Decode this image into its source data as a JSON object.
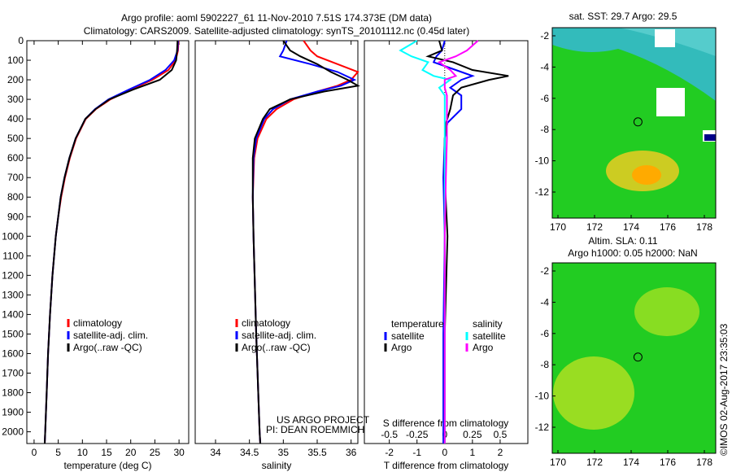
{
  "title_line1": "Argo profile: aoml 5902227_61 11-Nov-2010 7.51S 174.373E (DM data)",
  "title_line2": "Climatology: CARS2009. Satellite-adjusted climatology: synTS_20101112.nc (0.45d later)",
  "colors": {
    "climatology": "#ff0000",
    "satellite": "#0000ff",
    "argo": "#000000",
    "sal_satellite": "#00ffff",
    "sal_argo": "#ff00ff"
  },
  "chart_data": [
    {
      "type": "line",
      "name": "temperature",
      "xlabel": "temperature (deg C)",
      "xlim": [
        -1.5,
        32
      ],
      "ylim": [
        2060,
        0
      ],
      "xticks": [
        0,
        5,
        10,
        15,
        20,
        25,
        30
      ],
      "yticks": [
        0,
        100,
        200,
        300,
        400,
        500,
        600,
        700,
        800,
        900,
        1000,
        1100,
        1200,
        1300,
        1400,
        1500,
        1600,
        1700,
        1800,
        1900,
        2000
      ],
      "legend": [
        "climatology",
        "satellite-adj. clim.",
        "Argo(..raw -QC)"
      ],
      "depth": [
        0,
        50,
        100,
        150,
        200,
        250,
        300,
        350,
        400,
        500,
        600,
        700,
        800,
        900,
        1000,
        1200,
        1400,
        1600,
        1800,
        2000,
        2060
      ],
      "series": [
        {
          "name": "climatology",
          "color": "#ff0000",
          "values": [
            29.9,
            29.8,
            29.3,
            27.8,
            24.5,
            20,
            15.8,
            12.8,
            10.7,
            8.7,
            7.4,
            6.4,
            5.6,
            5.0,
            4.5,
            3.8,
            3.3,
            2.9,
            2.6,
            2.3,
            2.2
          ]
        },
        {
          "name": "satellite-adj. clim.",
          "color": "#0000ff",
          "values": [
            29.8,
            29.7,
            29.0,
            27.2,
            24,
            19.6,
            15.4,
            12.6,
            10.6,
            8.6,
            7.3,
            6.3,
            5.5,
            5.0,
            4.5,
            3.8,
            3.3,
            2.9,
            2.6,
            2.3,
            2.2
          ]
        },
        {
          "name": "Argo(..raw -QC)",
          "color": "#000000",
          "values": [
            29.7,
            29.6,
            29.4,
            28.5,
            26,
            20.5,
            15.6,
            12.7,
            10.6,
            8.6,
            7.3,
            6.3,
            5.5,
            5.0,
            4.5,
            3.8,
            3.3,
            2.9,
            2.6,
            2.3,
            2.2
          ]
        }
      ]
    },
    {
      "type": "line",
      "name": "salinity",
      "xlabel": "salinity",
      "xlim": [
        33.7,
        36.1
      ],
      "ylim": [
        2060,
        0
      ],
      "xticks": [
        34,
        34.5,
        35,
        35.5,
        36
      ],
      "legend": [
        "climatology",
        "satellite-adj. clim.",
        "Argo(..raw -QC)"
      ],
      "annotation": [
        "US ARGO PROJECT",
        "PI: DEAN ROEMMICH"
      ],
      "depth": [
        0,
        50,
        80,
        120,
        160,
        200,
        230,
        260,
        300,
        350,
        400,
        500,
        600,
        800,
        1000,
        1500,
        2000,
        2060
      ],
      "series": [
        {
          "name": "climatology",
          "color": "#ff0000",
          "values": [
            35.3,
            35.4,
            35.5,
            35.8,
            36.1,
            36.0,
            35.8,
            35.5,
            35.15,
            34.9,
            34.75,
            34.62,
            34.57,
            34.55,
            34.56,
            34.6,
            34.65,
            34.66
          ]
        },
        {
          "name": "satellite-adj. clim.",
          "color": "#0000ff",
          "values": [
            35.05,
            35.0,
            34.95,
            35.4,
            35.8,
            36.05,
            35.85,
            35.5,
            35.1,
            34.85,
            34.72,
            34.6,
            34.56,
            34.55,
            34.56,
            34.6,
            34.65,
            34.66
          ]
        },
        {
          "name": "Argo(..raw -QC)",
          "color": "#000000",
          "values": [
            35.0,
            35.1,
            35.25,
            35.5,
            35.7,
            35.95,
            36.1,
            35.6,
            35.1,
            34.8,
            34.7,
            34.58,
            34.55,
            34.55,
            34.56,
            34.6,
            34.65,
            34.66
          ]
        }
      ]
    },
    {
      "type": "line",
      "name": "difference",
      "xlabel": "T difference from climatology",
      "x2label": "S difference from climatology",
      "xlim": [
        -2.9,
        3
      ],
      "ylim": [
        2060,
        0
      ],
      "xticks": [
        -2,
        -1,
        0,
        1,
        2
      ],
      "x2ticks": [
        -0.5,
        -0.25,
        0,
        0.25,
        0.5
      ],
      "legend_headers": [
        "temperature",
        "salinity"
      ],
      "legend": [
        "satellite",
        "Argo",
        "satellite",
        "Argo"
      ],
      "depth": [
        0,
        50,
        80,
        110,
        150,
        180,
        200,
        240,
        280,
        350,
        420,
        500,
        700,
        1000,
        1500,
        2060
      ],
      "series": [
        {
          "name": "T satellite",
          "color": "#0000ff",
          "values": [
            0,
            -0.1,
            -0.3,
            -0.4,
            0.4,
            1.0,
            0.6,
            0.2,
            0.6,
            0.6,
            0.1,
            0,
            -0.05,
            0,
            -0.05,
            -0.05
          ]
        },
        {
          "name": "T Argo",
          "color": "#000000",
          "values": [
            -0.2,
            -0.1,
            -0.6,
            0.3,
            1.0,
            2.3,
            1.6,
            0.6,
            0.3,
            0.2,
            0.05,
            0,
            0,
            0.1,
            0,
            0
          ]
        },
        {
          "name": "S satellite",
          "color": "#00ffff",
          "units": "S",
          "values": [
            -0.25,
            -0.4,
            -0.3,
            -0.15,
            -0.2,
            -0.1,
            0.05,
            -0.05,
            0,
            0,
            0,
            0,
            0,
            0,
            0,
            0
          ]
        },
        {
          "name": "S Argo",
          "color": "#ff00ff",
          "units": "S",
          "values": [
            0.3,
            0.2,
            0.1,
            -0.05,
            0.05,
            0.1,
            0,
            0,
            0.02,
            0.02,
            0.02,
            0.02,
            0.01,
            0,
            0,
            0
          ]
        }
      ]
    }
  ],
  "map_sst": {
    "title": "sat. SST: 29.7 Argo: 29.5",
    "xticks": [
      170,
      172,
      174,
      176,
      178
    ],
    "yticks": [
      -2,
      -4,
      -6,
      -8,
      -10,
      -12
    ]
  },
  "map_sla": {
    "title1": "Altim. SLA: 0.11",
    "title2": "Argo h1000: 0.05 h2000: NaN",
    "xticks": [
      170,
      172,
      174,
      176,
      178
    ],
    "yticks": [
      -2,
      -4,
      -6,
      -8,
      -10,
      -12
    ]
  },
  "credit": "©IMOS 02-Aug-2017 23:35:03"
}
